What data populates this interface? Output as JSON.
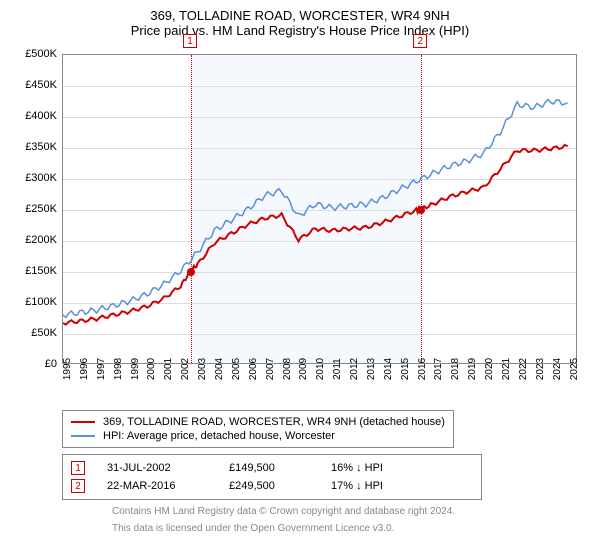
{
  "title": "369, TOLLADINE ROAD, WORCESTER, WR4 9NH",
  "subtitle": "Price paid vs. HM Land Registry's House Price Index (HPI)",
  "chart": {
    "type": "line",
    "background_color": "#ffffff",
    "grid_color": "#dddddd",
    "axis_color": "#888888",
    "ylim": [
      0,
      500000
    ],
    "ytick_step": 50000,
    "ytick_prefix": "£",
    "ytick_suffix": "K",
    "xlim": [
      1995,
      2025.5
    ],
    "xticks": [
      1995,
      1996,
      1997,
      1998,
      1999,
      2000,
      2001,
      2002,
      2003,
      2004,
      2005,
      2006,
      2007,
      2008,
      2009,
      2010,
      2011,
      2012,
      2013,
      2014,
      2015,
      2016,
      2017,
      2018,
      2019,
      2020,
      2021,
      2022,
      2023,
      2024,
      2025
    ],
    "shade": {
      "start": 2002.58,
      "end": 2016.22,
      "color": "#f5f8fc"
    },
    "markers": [
      {
        "id": "1",
        "x": 2002.58,
        "y": 149500,
        "color": "#cc0000"
      },
      {
        "id": "2",
        "x": 2016.22,
        "y": 249500,
        "color": "#cc0000"
      }
    ],
    "marker_vline_color": "#cc0000",
    "series": [
      {
        "name": "price_paid",
        "label": "369, TOLLADINE ROAD, WORCESTER, WR4 9NH (detached house)",
        "color": "#cc0000",
        "width": 2,
        "x": [
          1995,
          1996,
          1997,
          1998,
          1999,
          2000,
          2001,
          2002,
          2002.58,
          2003,
          2004,
          2005,
          2006,
          2007,
          2008,
          2009,
          2010,
          2011,
          2012,
          2013,
          2014,
          2015,
          2016,
          2016.22,
          2017,
          2018,
          2019,
          2020,
          2021,
          2022,
          2023,
          2024,
          2025
        ],
        "y": [
          65000,
          68000,
          72000,
          78000,
          84000,
          92000,
          105000,
          125000,
          149500,
          160000,
          195000,
          210000,
          225000,
          235000,
          240000,
          200000,
          218000,
          215000,
          218000,
          220000,
          228000,
          238000,
          248000,
          249500,
          258000,
          270000,
          278000,
          285000,
          315000,
          345000,
          345000,
          348000,
          352000
        ]
      },
      {
        "name": "hpi",
        "label": "HPI: Average price, detached house, Worcester",
        "color": "#5b8fd6",
        "width": 1.5,
        "x": [
          1995,
          1996,
          1997,
          1998,
          1999,
          2000,
          2001,
          2002,
          2003,
          2004,
          2005,
          2006,
          2007,
          2008,
          2009,
          2010,
          2011,
          2012,
          2013,
          2014,
          2015,
          2016,
          2017,
          2018,
          2019,
          2020,
          2021,
          2022,
          2023,
          2024,
          2025
        ],
        "y": [
          78000,
          82000,
          86000,
          93000,
          101000,
          112000,
          128000,
          150000,
          180000,
          215000,
          232000,
          250000,
          272000,
          280000,
          238000,
          258000,
          252000,
          255000,
          258000,
          268000,
          282000,
          295000,
          308000,
          320000,
          328000,
          340000,
          375000,
          420000,
          415000,
          425000,
          422000
        ]
      }
    ]
  },
  "legend": {
    "items": [
      {
        "color": "#cc0000",
        "width": 2,
        "label": "369, TOLLADINE ROAD, WORCESTER, WR4 9NH (detached house)"
      },
      {
        "color": "#5b8fd6",
        "width": 2,
        "label": "HPI: Average price, detached house, Worcester"
      }
    ]
  },
  "transactions": [
    {
      "id": "1",
      "color": "#cc0000",
      "date": "31-JUL-2002",
      "price": "£149,500",
      "delta": "16% ↓ HPI"
    },
    {
      "id": "2",
      "color": "#cc0000",
      "date": "22-MAR-2016",
      "price": "£249,500",
      "delta": "17% ↓ HPI"
    }
  ],
  "attribution": {
    "line1": "Contains HM Land Registry data © Crown copyright and database right 2024.",
    "line2": "This data is licensed under the Open Government Licence v3.0."
  }
}
